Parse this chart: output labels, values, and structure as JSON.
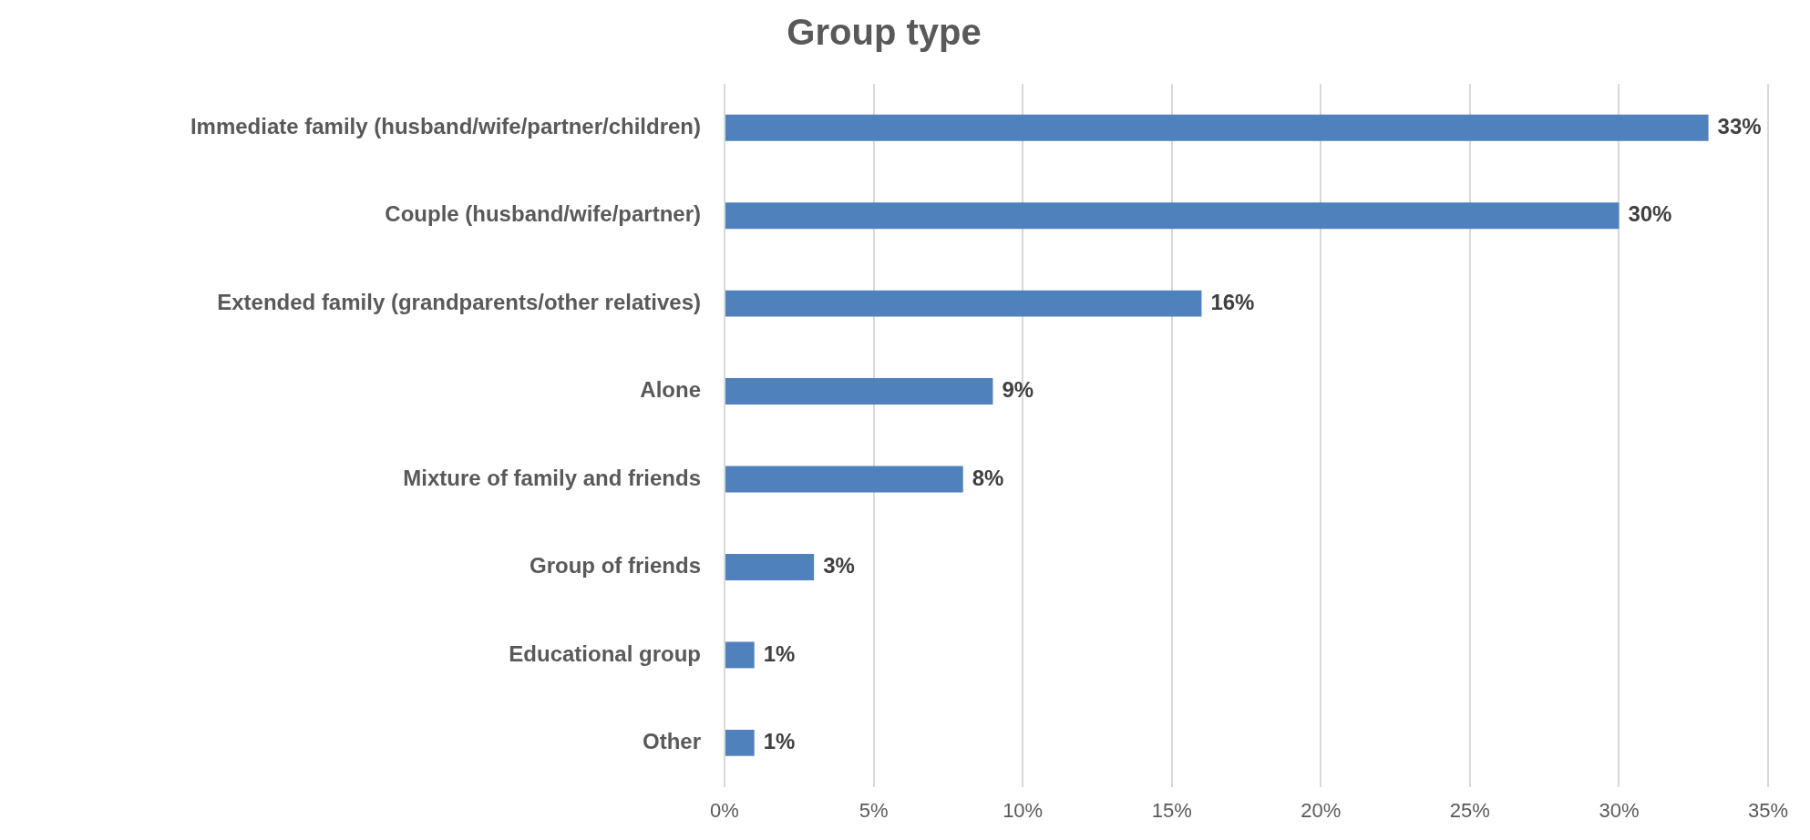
{
  "chart_data": {
    "type": "bar",
    "orientation": "horizontal",
    "title": "Group type",
    "categories": [
      "Immediate family (husband/wife/partner/children)",
      "Couple (husband/wife/partner)",
      "Extended family (grandparents/other relatives)",
      "Alone",
      "Mixture of family and friends",
      "Group of friends",
      "Educational group",
      "Other"
    ],
    "values": [
      33,
      30,
      16,
      9,
      8,
      3,
      1,
      1
    ],
    "color": "#4f81bd",
    "value_labels": [
      "33%",
      "30%",
      "16%",
      "9%",
      "8%",
      "3%",
      "1%",
      "1%"
    ],
    "xlim": [
      0,
      35
    ],
    "xticks": [
      {
        "value": 0,
        "label": "0%"
      },
      {
        "value": 5,
        "label": "5%"
      },
      {
        "value": 10,
        "label": "10%"
      },
      {
        "value": 15,
        "label": "15%"
      },
      {
        "value": 20,
        "label": "20%"
      },
      {
        "value": 25,
        "label": "25%"
      },
      {
        "value": 30,
        "label": "30%"
      },
      {
        "value": 35,
        "label": "35%"
      }
    ],
    "grid": "x"
  }
}
